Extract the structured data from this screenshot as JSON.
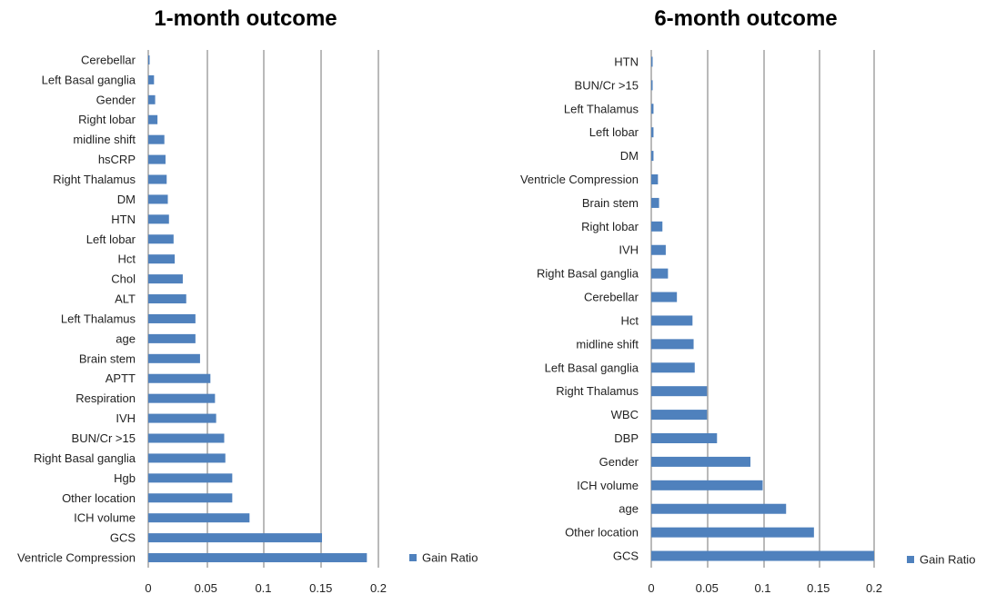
{
  "chart_data": [
    {
      "type": "bar",
      "orientation": "horizontal",
      "title": "1-month outcome",
      "categories": [
        "Cerebellar",
        "Left Basal ganglia",
        "Gender",
        "Right lobar",
        "midline shift",
        "hsCRP",
        "Right Thalamus",
        "DM",
        "HTN",
        "Left lobar",
        "Hct",
        "Chol",
        "ALT",
        "Left Thalamus",
        "age",
        "Brain stem",
        "APTT",
        "Respiration",
        "IVH",
        "BUN/Cr >15",
        "Right Basal ganglia",
        "Hgb",
        "Other location",
        "ICH volume",
        "GCS",
        "Ventricle Compression"
      ],
      "series": [
        {
          "name": "Gain Ratio",
          "values": [
            0.001,
            0.005,
            0.006,
            0.008,
            0.014,
            0.015,
            0.016,
            0.017,
            0.018,
            0.022,
            0.023,
            0.03,
            0.033,
            0.041,
            0.041,
            0.045,
            0.054,
            0.058,
            0.059,
            0.066,
            0.067,
            0.073,
            0.073,
            0.088,
            0.151,
            0.19
          ]
        }
      ],
      "xlim": [
        0,
        0.2
      ],
      "xticks": [
        "0",
        "0.05",
        "0.1",
        "0.15",
        "0.2"
      ],
      "grid": true,
      "legend": "right",
      "color": "#4f81bd"
    },
    {
      "type": "bar",
      "orientation": "horizontal",
      "title": "6-month outcome",
      "categories": [
        "HTN",
        "BUN/Cr >15",
        "Left Thalamus",
        "Left lobar",
        "DM",
        "Ventricle Compression",
        "Brain stem",
        "Right lobar",
        "IVH",
        "Right Basal ganglia",
        "Cerebellar",
        "Hct",
        "midline shift",
        "Left Basal ganglia",
        "Right Thalamus",
        "WBC",
        "DBP",
        "Gender",
        "ICH volume",
        "age",
        "Other location",
        "GCS"
      ],
      "series": [
        {
          "name": "Gain Ratio",
          "values": [
            0.001,
            0.001,
            0.002,
            0.002,
            0.002,
            0.006,
            0.007,
            0.01,
            0.013,
            0.015,
            0.023,
            0.037,
            0.038,
            0.039,
            0.05,
            0.05,
            0.059,
            0.089,
            0.1,
            0.121,
            0.146,
            0.2
          ]
        }
      ],
      "xlim": [
        0,
        0.2
      ],
      "xticks": [
        "0",
        "0.05",
        "0.1",
        "0.15",
        "0.2"
      ],
      "grid": true,
      "legend": "right",
      "color": "#4f81bd"
    }
  ]
}
